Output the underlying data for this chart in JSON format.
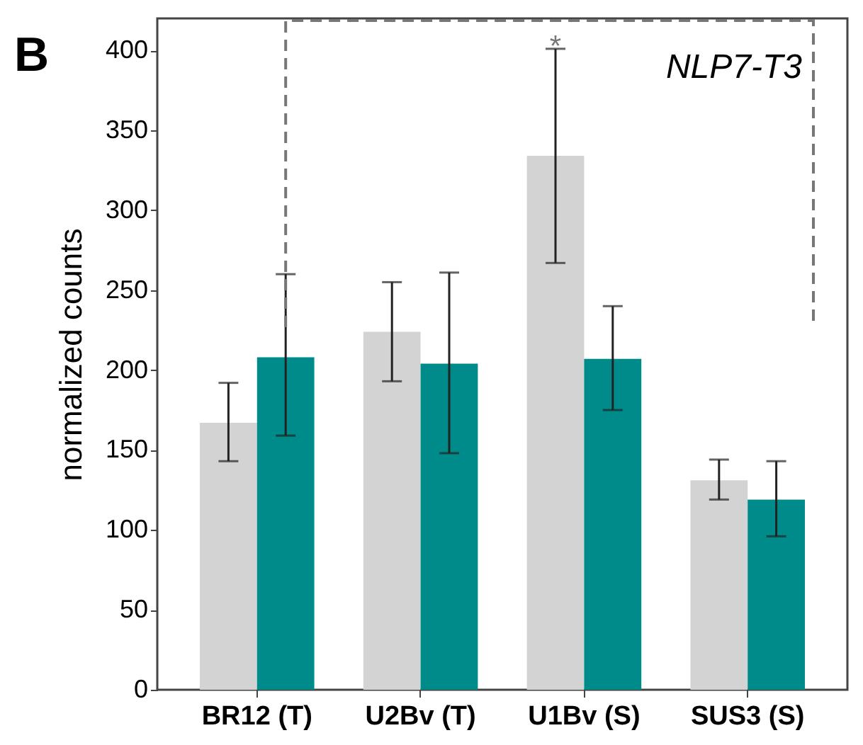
{
  "chart_data": {
    "type": "bar",
    "ylabel": "normalized counts",
    "categories": [
      "BR12 (T)",
      "U2Bv (T)",
      "U1Bv (S)",
      "SUS3 (S)"
    ],
    "series": [
      {
        "color": "#d3d3d3",
        "values": [
          167,
          224,
          334,
          131
        ],
        "errors": [
          [
            143,
            192
          ],
          [
            193,
            255
          ],
          [
            267,
            401
          ],
          [
            119,
            144
          ]
        ]
      },
      {
        "color": "#008b8b",
        "values": [
          208,
          204,
          207,
          119
        ],
        "errors": [
          [
            159,
            260
          ],
          [
            148,
            261
          ],
          [
            175,
            240
          ],
          [
            96,
            143
          ]
        ]
      }
    ],
    "ylim": [
      0,
      420
    ],
    "yticks": [
      0,
      50,
      100,
      150,
      200,
      250,
      300,
      350,
      400
    ],
    "grid": false,
    "annotations": [
      "B",
      "*",
      "NLP7-T3"
    ]
  }
}
